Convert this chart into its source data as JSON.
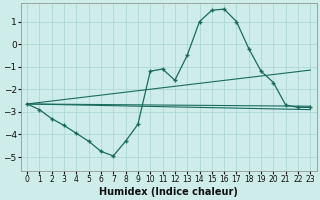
{
  "title": "",
  "xlabel": "Humidex (Indice chaleur)",
  "ylabel": "",
  "background_color": "#cdecea",
  "grid_color": "#aed8d4",
  "line_color": "#1a6b5e",
  "x_ticks": [
    0,
    1,
    2,
    3,
    4,
    5,
    6,
    7,
    8,
    9,
    10,
    11,
    12,
    13,
    14,
    15,
    16,
    17,
    18,
    19,
    20,
    21,
    22,
    23
  ],
  "y_ticks": [
    -5,
    -4,
    -3,
    -2,
    -1,
    0,
    1
  ],
  "xlim": [
    -0.5,
    23.5
  ],
  "ylim": [
    -5.6,
    1.8
  ],
  "curve_x": [
    0,
    1,
    2,
    3,
    4,
    5,
    6,
    7,
    8,
    9,
    10,
    11,
    12,
    13,
    14,
    15,
    16,
    17,
    18,
    19,
    20,
    21,
    22,
    23
  ],
  "curve_y": [
    -2.65,
    -2.9,
    -3.3,
    -3.6,
    -3.95,
    -4.3,
    -4.75,
    -4.95,
    -4.3,
    -3.55,
    -1.2,
    -1.1,
    -1.6,
    -0.5,
    1.0,
    1.5,
    1.55,
    1.0,
    -0.2,
    -1.2,
    -1.7,
    -2.7,
    -2.8,
    -2.8
  ],
  "line1_x": [
    0,
    23
  ],
  "line1_y": [
    -2.65,
    -1.15
  ],
  "line2_x": [
    0,
    23
  ],
  "line2_y": [
    -2.65,
    -2.75
  ],
  "line3_x": [
    0,
    23
  ],
  "line3_y": [
    -2.65,
    -2.9
  ],
  "xlabel_fontsize": 7,
  "tick_fontsize": 6
}
